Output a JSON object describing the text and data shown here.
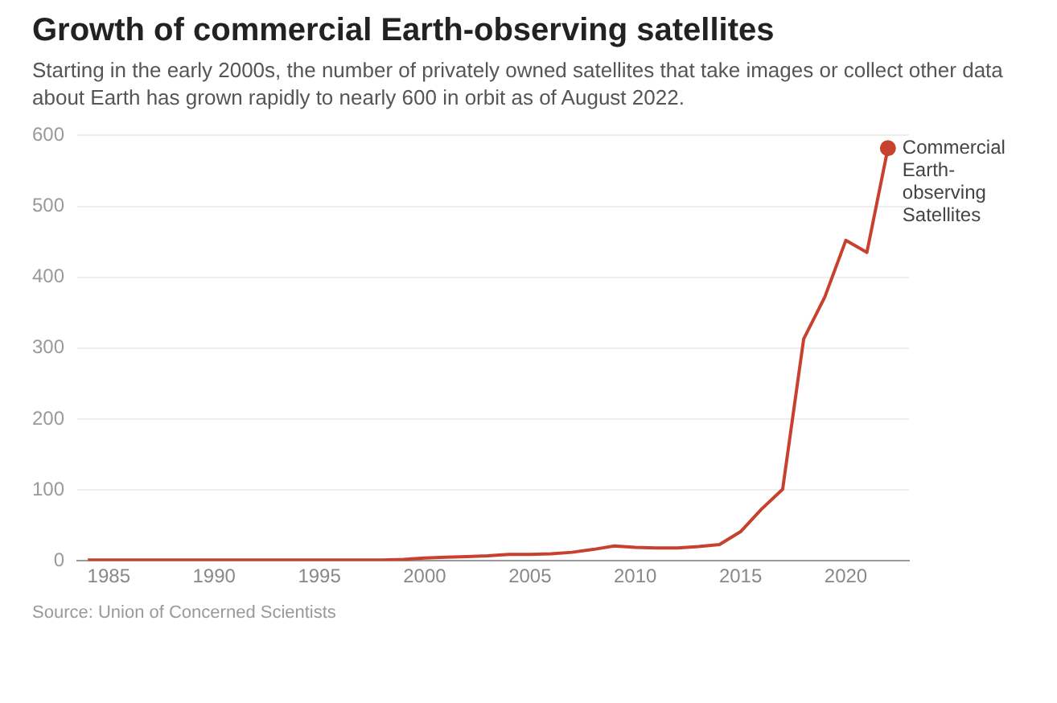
{
  "chart_data": {
    "type": "line",
    "title": "Growth of commercial Earth-observing satellites",
    "subtitle": "Starting in the early 2000s, the number of privately owned satellites that take images or collect other data about Earth has grown rapidly to nearly 600 in orbit as of August 2022.",
    "annotations": [
      "Source: Union of Concerned Scientists"
    ],
    "x": [
      1984,
      1985,
      1986,
      1987,
      1988,
      1989,
      1990,
      1991,
      1992,
      1993,
      1994,
      1995,
      1996,
      1997,
      1998,
      1999,
      2000,
      2001,
      2002,
      2003,
      2004,
      2005,
      2006,
      2007,
      2008,
      2009,
      2010,
      2011,
      2012,
      2013,
      2014,
      2015,
      2016,
      2017,
      2018,
      2019,
      2020,
      2021,
      2022
    ],
    "series": [
      {
        "name": "Commercial Earth-observing Satellites",
        "color": "#c8412f",
        "values": [
          1,
          1,
          1,
          1,
          1,
          1,
          1,
          1,
          1,
          1,
          1,
          1,
          1,
          1,
          1,
          2,
          4,
          5,
          6,
          7,
          9,
          9,
          10,
          12,
          16,
          21,
          19,
          18,
          18,
          20,
          23,
          41,
          73,
          101,
          313,
          372,
          452,
          435,
          582
        ]
      }
    ],
    "xlim": [
      1983.5,
      2023
    ],
    "xticks": [
      1985,
      1990,
      1995,
      2000,
      2005,
      2010,
      2015,
      2020
    ],
    "ylim": [
      0,
      600
    ],
    "yticks": [
      0,
      100,
      200,
      300,
      400,
      500,
      600
    ],
    "grid": "y",
    "legend": false,
    "marker": "none",
    "line_style": "solid"
  }
}
